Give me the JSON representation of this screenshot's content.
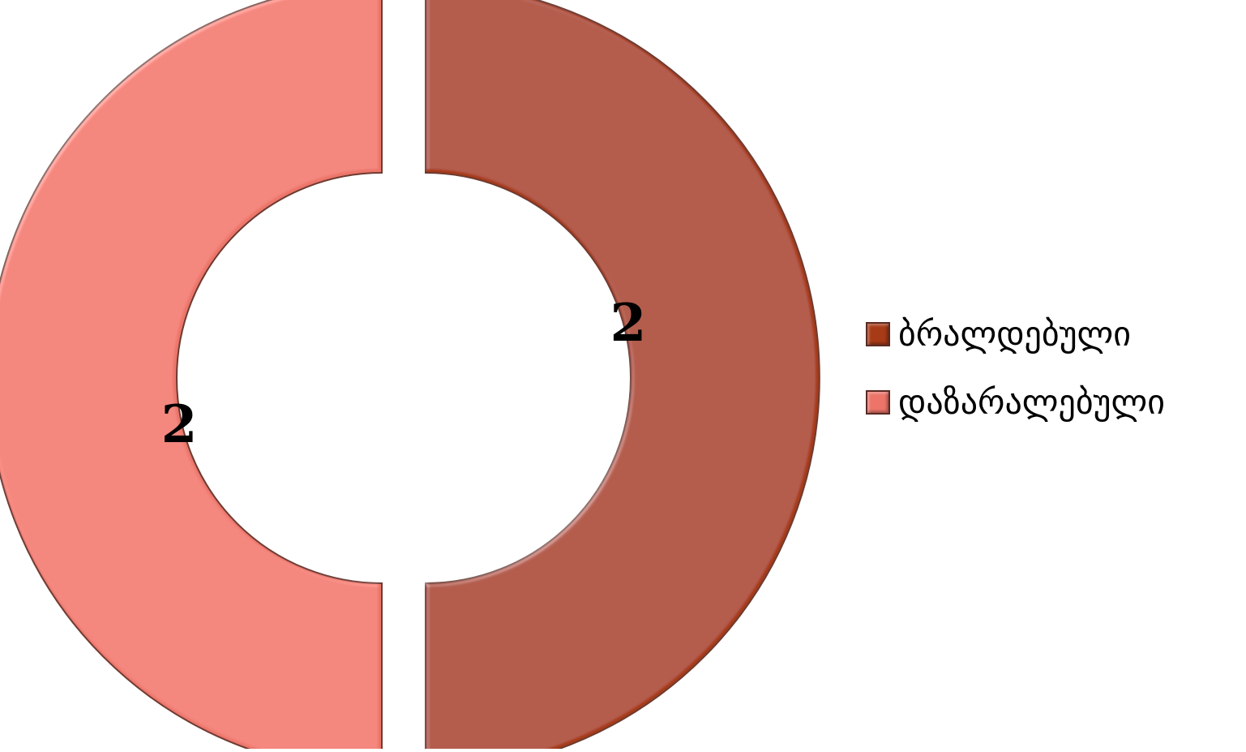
{
  "chart_data": {
    "type": "pie",
    "subtype": "doughnut",
    "title": "",
    "legend_position": "right",
    "series": [
      {
        "values": [
          2,
          2
        ]
      }
    ],
    "slices": [
      {
        "label": "ბრალდებული",
        "value": 2,
        "color": "#A73A17"
      },
      {
        "label": "დაზარალებული",
        "value": 2,
        "color": "#EC7469"
      }
    ],
    "data_labels": [
      "2",
      "2"
    ],
    "exploded": true
  }
}
